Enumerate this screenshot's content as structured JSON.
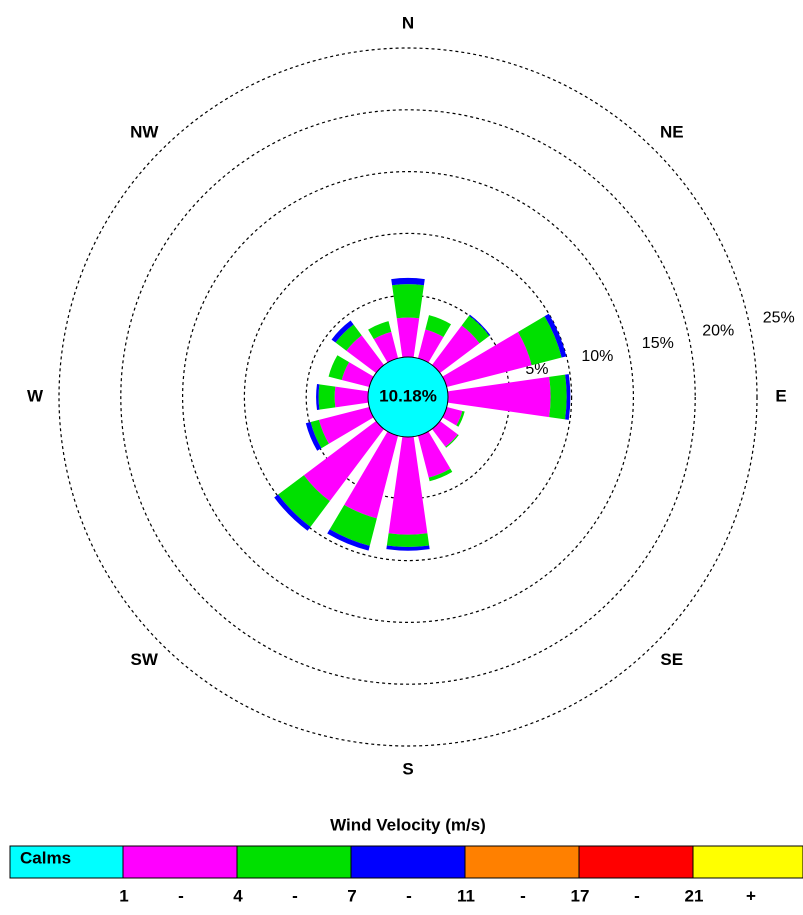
{
  "chart_data": {
    "type": "windrose",
    "directions": [
      "N",
      null,
      "NE",
      null,
      "E",
      null,
      "SE",
      null,
      "S",
      null,
      "SW",
      null,
      "W",
      null,
      "NW",
      null
    ],
    "series": [
      {
        "color": "#ff00ff",
        "values": [
          3.2,
          2.4,
          4.0,
          7.1,
          8.3,
          1.3,
          1.8,
          3.5,
          7.9,
          6.9,
          7.3,
          4.2,
          2.7,
          2.3,
          3.0,
          2.2
        ]
      },
      {
        "color": "#00e000",
        "values": [
          2.7,
          1.2,
          1.0,
          2.5,
          1.3,
          0.2,
          0.1,
          0.3,
          1.0,
          2.3,
          2.6,
          0.7,
          1.3,
          1.1,
          1.1,
          0.9
        ]
      },
      {
        "color": "#0000ff",
        "values": [
          0.5,
          0,
          0.1,
          0.4,
          0.3,
          0,
          0,
          0,
          0.3,
          0.4,
          0.4,
          0.4,
          0.2,
          0,
          0.4,
          0
        ]
      },
      {
        "color": "#ff8000",
        "values": [
          0,
          0,
          0,
          0,
          0,
          0,
          0,
          0,
          0,
          0,
          0,
          0,
          0,
          0,
          0,
          0
        ]
      },
      {
        "color": "#ff0000",
        "values": [
          0,
          0,
          0,
          0,
          0,
          0,
          0,
          0,
          0,
          0,
          0,
          0,
          0,
          0,
          0,
          0
        ]
      },
      {
        "color": "#ffff00",
        "values": [
          0,
          0,
          0,
          0,
          0,
          0,
          0,
          0,
          0,
          0,
          0,
          0,
          0,
          0,
          0,
          0
        ]
      }
    ],
    "calm_label": "Calms",
    "calm_value": 10.18,
    "calm_value_label": "10.18%",
    "calm_color": "#00ffff",
    "rlim": [
      0,
      25
    ],
    "rticks": [
      {
        "value": 5,
        "label": "5%"
      },
      {
        "value": 10,
        "label": "10%"
      },
      {
        "value": 15,
        "label": "15%"
      },
      {
        "value": 20,
        "label": "20%"
      },
      {
        "value": 25,
        "label": "25%"
      }
    ],
    "legend_title": "Wind Velocity (m/s)",
    "bin_edges": [
      1,
      4,
      7,
      11,
      17,
      21
    ],
    "bin_separator": "-",
    "bin_open_end": "+"
  }
}
